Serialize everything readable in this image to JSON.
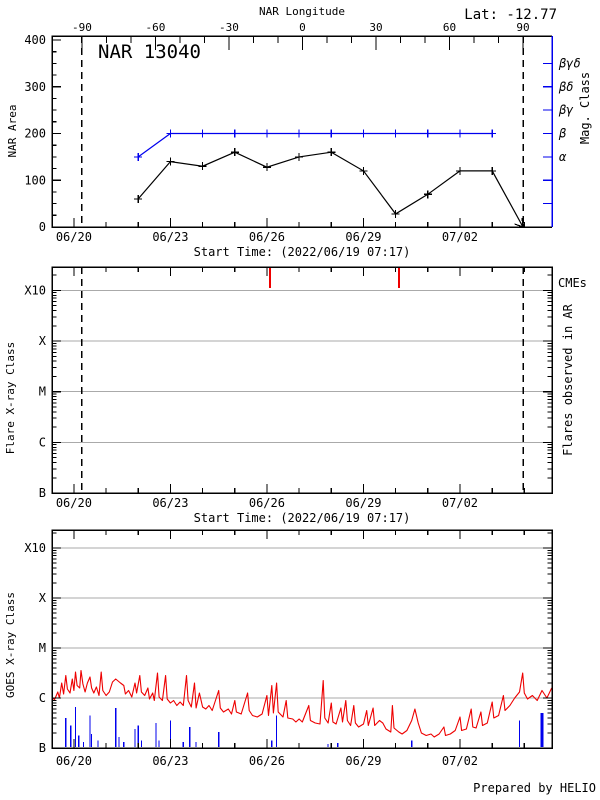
{
  "header": {
    "lat": "Lat: -12.77",
    "top_axis_title": "NAR Longitude"
  },
  "footer": {
    "prepared_by": "Prepared by HELIO"
  },
  "colors": {
    "accent_blue": "#0000ee",
    "data_red": "#ee0000",
    "grid_gray": "#aaaaaa",
    "axis_black": "#000000"
  },
  "time_axis": {
    "axis_title": "Start Time: (2022/06/19 07:17)",
    "t_start": 0.32,
    "t_end": 15.86,
    "major_ticks": [
      {
        "t": 1,
        "label": "06/20"
      },
      {
        "t": 4,
        "label": "06/23"
      },
      {
        "t": 7,
        "label": "06/26"
      },
      {
        "t": 10,
        "label": "06/29"
      },
      {
        "t": 13,
        "label": "07/02"
      }
    ],
    "minor_step": 1,
    "limb_lines_t": [
      1.25,
      14.96
    ]
  },
  "longitude_axis": {
    "major_ticks": [
      -90,
      -60,
      -30,
      0,
      30,
      60,
      90
    ],
    "minor_step": 10,
    "lon_min": -90,
    "lon_max": 90
  },
  "chart_data": [
    {
      "type": "line",
      "name": "nar-area-and-mag-class",
      "title": "NAR 13040",
      "ylabel": "NAR Area",
      "ylim": [
        0,
        400
      ],
      "yticks": [
        0,
        100,
        200,
        300,
        400
      ],
      "y_minor_step": 25,
      "right_axis": {
        "label": "Mag. Class",
        "tick_values": [
          50,
          100,
          150,
          200,
          250,
          300,
          350
        ],
        "labeled_ticks": [
          {
            "value": 150,
            "label": "α"
          },
          {
            "value": 200,
            "label": "β"
          },
          {
            "value": 250,
            "label": "βγ"
          },
          {
            "value": 300,
            "label": "βδ"
          },
          {
            "value": 350,
            "label": "βγδ"
          }
        ]
      },
      "series": [
        {
          "name": "NAR Area",
          "color_key": "axis_black",
          "marker": "plus",
          "marker_count": 12,
          "t": [
            3,
            4,
            5,
            6,
            7,
            8,
            9,
            10,
            11,
            12,
            13,
            14,
            14.96
          ],
          "values": [
            60,
            140,
            130,
            160,
            128,
            150,
            160,
            120,
            28,
            70,
            120,
            120,
            0
          ],
          "arrow_end": true
        },
        {
          "name": "Magnetic Class",
          "color_key": "accent_blue",
          "marker": "plus",
          "marker_count": 12,
          "t": [
            3,
            4,
            5,
            6,
            7,
            8,
            9,
            10,
            11,
            12,
            13,
            14
          ],
          "values": [
            150,
            200,
            200,
            200,
            200,
            200,
            200,
            200,
            200,
            200,
            200,
            200
          ]
        }
      ]
    },
    {
      "type": "event-timeline",
      "name": "flares-observed-in-ar",
      "ylabel": "Flare X-ray Class",
      "right_label": "Flares observed in AR",
      "cme_label": "CMEs",
      "class_levels": [
        "B",
        "C",
        "M",
        "X",
        "X10"
      ],
      "cmes_t": [
        7.1,
        11.1
      ],
      "flares": []
    },
    {
      "type": "line",
      "name": "goes-xray-flux",
      "ylabel": "GOES X-ray Class",
      "class_levels": [
        "B",
        "C",
        "M",
        "X",
        "X10"
      ],
      "goes_red_series": [
        [
          0.32,
          1.0
        ],
        [
          0.4,
          0.97
        ],
        [
          0.5,
          1.12
        ],
        [
          0.55,
          1.0
        ],
        [
          0.62,
          1.3
        ],
        [
          0.68,
          1.08
        ],
        [
          0.75,
          1.45
        ],
        [
          0.8,
          1.18
        ],
        [
          0.88,
          1.1
        ],
        [
          0.95,
          1.38
        ],
        [
          1.0,
          1.15
        ],
        [
          1.05,
          1.52
        ],
        [
          1.1,
          1.25
        ],
        [
          1.18,
          1.2
        ],
        [
          1.22,
          1.55
        ],
        [
          1.28,
          1.28
        ],
        [
          1.35,
          1.12
        ],
        [
          1.42,
          1.3
        ],
        [
          1.5,
          1.42
        ],
        [
          1.55,
          1.2
        ],
        [
          1.62,
          1.1
        ],
        [
          1.7,
          1.22
        ],
        [
          1.78,
          1.05
        ],
        [
          1.85,
          1.52
        ],
        [
          1.9,
          1.15
        ],
        [
          2.0,
          1.05
        ],
        [
          2.1,
          1.12
        ],
        [
          2.2,
          1.32
        ],
        [
          2.3,
          1.38
        ],
        [
          2.45,
          1.3
        ],
        [
          2.55,
          1.25
        ],
        [
          2.6,
          1.08
        ],
        [
          2.7,
          1.15
        ],
        [
          2.8,
          1.02
        ],
        [
          2.9,
          1.3
        ],
        [
          2.95,
          1.1
        ],
        [
          3.05,
          1.45
        ],
        [
          3.1,
          1.12
        ],
        [
          3.2,
          1.05
        ],
        [
          3.3,
          1.2
        ],
        [
          3.35,
          0.98
        ],
        [
          3.45,
          1.1
        ],
        [
          3.5,
          0.95
        ],
        [
          3.6,
          1.5
        ],
        [
          3.65,
          1.02
        ],
        [
          3.75,
          0.95
        ],
        [
          3.85,
          1.45
        ],
        [
          3.9,
          0.98
        ],
        [
          4.0,
          0.9
        ],
        [
          4.1,
          0.95
        ],
        [
          4.2,
          0.85
        ],
        [
          4.3,
          0.92
        ],
        [
          4.4,
          0.85
        ],
        [
          4.5,
          1.45
        ],
        [
          4.55,
          0.95
        ],
        [
          4.65,
          0.82
        ],
        [
          4.75,
          1.3
        ],
        [
          4.8,
          0.8
        ],
        [
          4.9,
          1.1
        ],
        [
          5.0,
          0.82
        ],
        [
          5.1,
          0.78
        ],
        [
          5.2,
          0.85
        ],
        [
          5.3,
          0.75
        ],
        [
          5.5,
          1.15
        ],
        [
          5.55,
          0.8
        ],
        [
          5.65,
          0.72
        ],
        [
          5.8,
          0.78
        ],
        [
          5.9,
          0.68
        ],
        [
          6.0,
          0.95
        ],
        [
          6.05,
          0.72
        ],
        [
          6.2,
          0.68
        ],
        [
          6.4,
          1.1
        ],
        [
          6.45,
          0.75
        ],
        [
          6.55,
          0.65
        ],
        [
          6.7,
          0.62
        ],
        [
          6.85,
          0.68
        ],
        [
          7.0,
          1.05
        ],
        [
          7.05,
          0.65
        ],
        [
          7.15,
          1.25
        ],
        [
          7.2,
          0.7
        ],
        [
          7.3,
          1.3
        ],
        [
          7.35,
          0.72
        ],
        [
          7.5,
          0.62
        ],
        [
          7.6,
          0.95
        ],
        [
          7.65,
          0.6
        ],
        [
          7.8,
          0.58
        ],
        [
          7.9,
          0.52
        ],
        [
          8.0,
          0.58
        ],
        [
          8.1,
          0.52
        ],
        [
          8.3,
          0.85
        ],
        [
          8.35,
          0.55
        ],
        [
          8.5,
          0.5
        ],
        [
          8.65,
          0.48
        ],
        [
          8.75,
          1.35
        ],
        [
          8.8,
          0.6
        ],
        [
          8.9,
          0.5
        ],
        [
          9.0,
          0.9
        ],
        [
          9.05,
          0.52
        ],
        [
          9.15,
          0.48
        ],
        [
          9.3,
          0.8
        ],
        [
          9.35,
          0.52
        ],
        [
          9.45,
          0.95
        ],
        [
          9.5,
          0.55
        ],
        [
          9.6,
          0.45
        ],
        [
          9.7,
          0.85
        ],
        [
          9.75,
          0.5
        ],
        [
          9.85,
          0.42
        ],
        [
          10.0,
          0.48
        ],
        [
          10.1,
          0.75
        ],
        [
          10.15,
          0.45
        ],
        [
          10.3,
          0.8
        ],
        [
          10.35,
          0.45
        ],
        [
          10.5,
          0.55
        ],
        [
          10.6,
          0.5
        ],
        [
          10.7,
          0.38
        ],
        [
          10.85,
          0.32
        ],
        [
          10.9,
          0.85
        ],
        [
          10.95,
          0.4
        ],
        [
          11.1,
          0.32
        ],
        [
          11.2,
          0.28
        ],
        [
          11.35,
          0.35
        ],
        [
          11.5,
          0.55
        ],
        [
          11.6,
          0.78
        ],
        [
          11.7,
          0.5
        ],
        [
          11.8,
          0.3
        ],
        [
          11.95,
          0.25
        ],
        [
          12.1,
          0.28
        ],
        [
          12.2,
          0.22
        ],
        [
          12.35,
          0.28
        ],
        [
          12.5,
          0.42
        ],
        [
          12.55,
          0.25
        ],
        [
          12.7,
          0.28
        ],
        [
          12.85,
          0.35
        ],
        [
          13.0,
          0.62
        ],
        [
          13.05,
          0.35
        ],
        [
          13.2,
          0.38
        ],
        [
          13.35,
          0.78
        ],
        [
          13.4,
          0.42
        ],
        [
          13.5,
          0.4
        ],
        [
          13.65,
          0.72
        ],
        [
          13.7,
          0.45
        ],
        [
          13.85,
          0.5
        ],
        [
          14.0,
          0.92
        ],
        [
          14.05,
          0.6
        ],
        [
          14.2,
          0.65
        ],
        [
          14.35,
          1.05
        ],
        [
          14.4,
          0.75
        ],
        [
          14.55,
          0.85
        ],
        [
          14.7,
          1.0
        ],
        [
          14.85,
          1.12
        ],
        [
          14.95,
          1.5
        ],
        [
          15.0,
          1.1
        ],
        [
          15.1,
          0.98
        ],
        [
          15.25,
          1.05
        ],
        [
          15.4,
          0.95
        ],
        [
          15.55,
          1.15
        ],
        [
          15.7,
          1.0
        ],
        [
          15.85,
          1.2
        ]
      ],
      "blue_spikes": [
        [
          0.75,
          0.6
        ],
        [
          0.9,
          0.45
        ],
        [
          1.05,
          0.82
        ],
        [
          1.15,
          0.25
        ],
        [
          1.3,
          0.12
        ],
        [
          1.5,
          0.65
        ],
        [
          1.55,
          0.28
        ],
        [
          1.75,
          0.15
        ],
        [
          2.3,
          0.8
        ],
        [
          2.4,
          0.22
        ],
        [
          2.55,
          0.12
        ],
        [
          2.9,
          0.38
        ],
        [
          3.0,
          0.45
        ],
        [
          3.1,
          0.15
        ],
        [
          3.55,
          0.5
        ],
        [
          3.65,
          0.15
        ],
        [
          4.0,
          0.55
        ],
        [
          4.4,
          0.12
        ],
        [
          4.6,
          0.42
        ],
        [
          4.8,
          0.12
        ],
        [
          5.5,
          0.32
        ],
        [
          7.0,
          0.12
        ],
        [
          7.15,
          0.15
        ],
        [
          7.3,
          0.65
        ],
        [
          8.9,
          0.08
        ],
        [
          9.2,
          0.1
        ],
        [
          11.5,
          0.15
        ],
        [
          14.85,
          0.55
        ],
        [
          15.55,
          0.7,
          3
        ]
      ]
    }
  ]
}
